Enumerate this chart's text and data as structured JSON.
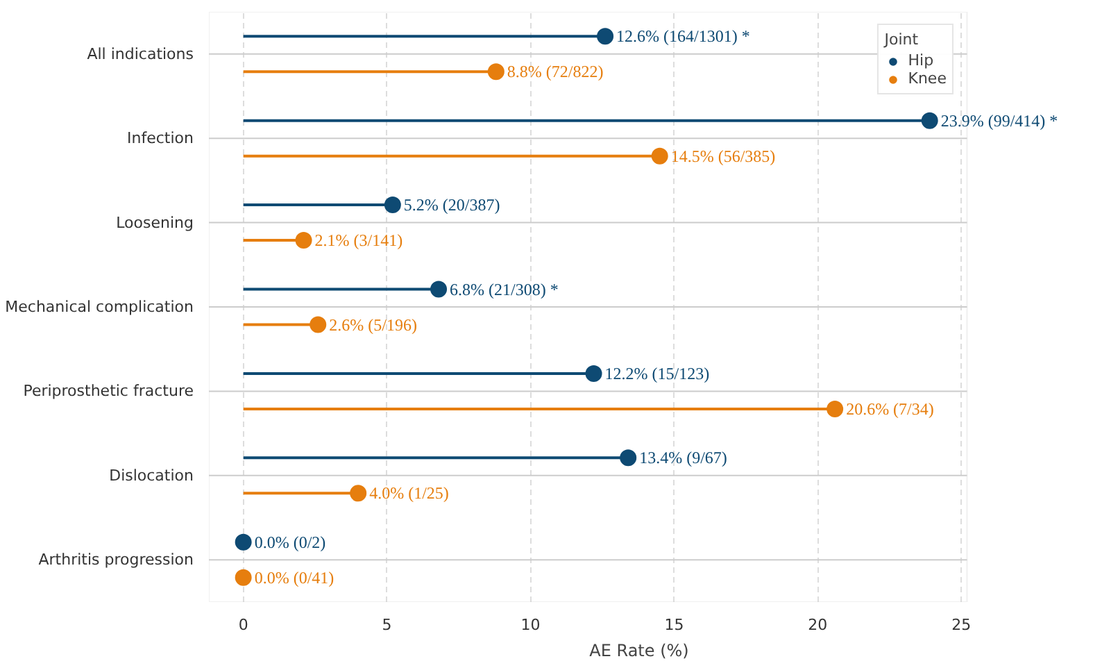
{
  "chart_data": {
    "type": "lollipop",
    "orientation": "horizontal",
    "xlabel": "AE Rate (%)",
    "legend_title": "Joint",
    "legend": "top right",
    "grid": true,
    "marker": "circle",
    "line_style": "solid",
    "categories": [
      "All indications",
      "Infection",
      "Loosening",
      "Mechanical complication",
      "Periprosthetic fracture",
      "Dislocation",
      "Arthritis progression"
    ],
    "xlim": [
      -1.2,
      25.2
    ],
    "xticks": [
      0,
      5,
      10,
      15,
      20,
      25
    ],
    "series": [
      {
        "name": "Hip",
        "color": "#0e4a73",
        "values": [
          12.6,
          23.9,
          5.2,
          6.8,
          12.2,
          13.4,
          0.0
        ],
        "value_labels": [
          "12.6% (164/1301) *",
          "23.9% (99/414) *",
          "5.2% (20/387)",
          "6.8% (21/308) *",
          "12.2% (15/123)",
          "13.4% (9/67)",
          "0.0% (0/2)"
        ]
      },
      {
        "name": "Knee",
        "color": "#e67e0e",
        "values": [
          8.8,
          14.5,
          2.1,
          2.6,
          20.6,
          4.0,
          0.0
        ],
        "value_labels": [
          "8.8% (72/822)",
          "14.5% (56/385)",
          "2.1% (3/141)",
          "2.6% (5/196)",
          "20.6% (7/34)",
          "4.0% (1/25)",
          "0.0% (0/41)"
        ]
      }
    ]
  }
}
